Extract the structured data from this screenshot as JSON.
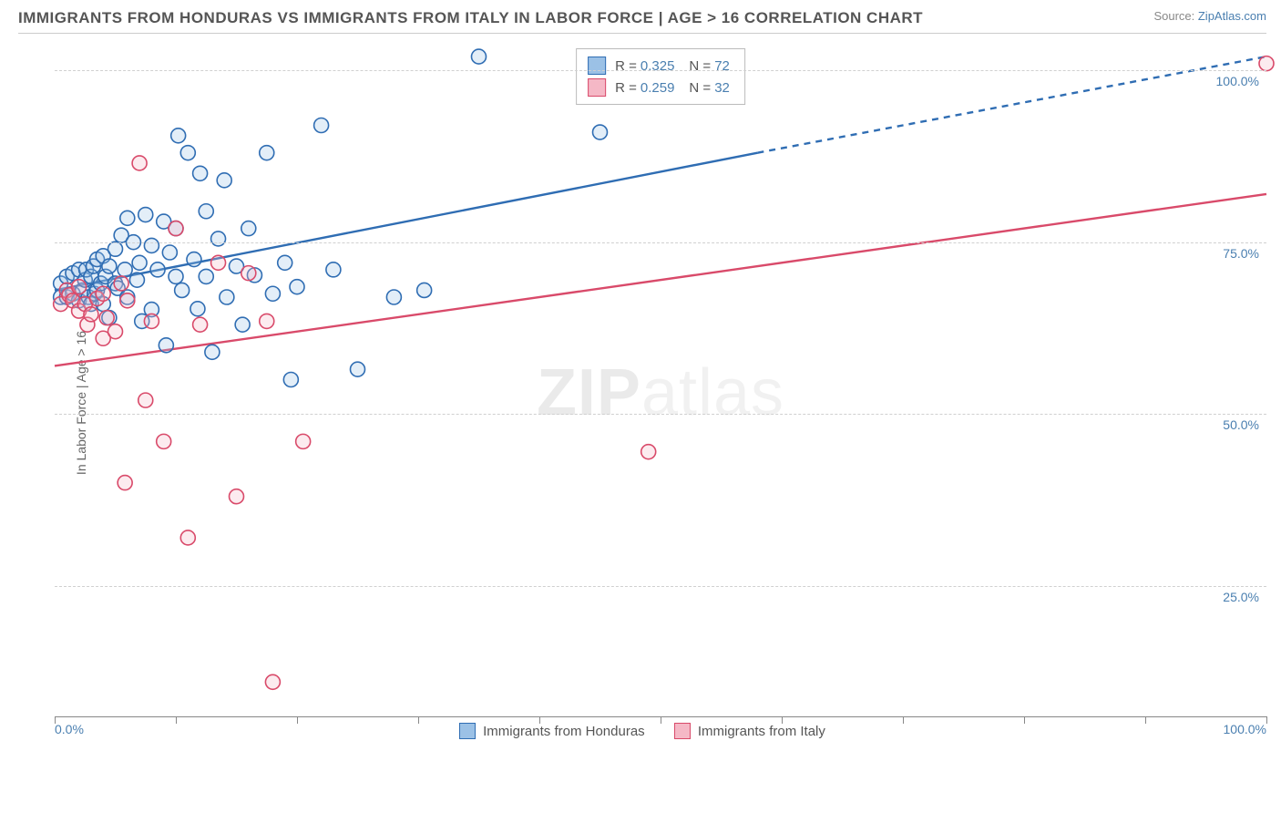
{
  "title": "IMMIGRANTS FROM HONDURAS VS IMMIGRANTS FROM ITALY IN LABOR FORCE | AGE > 16 CORRELATION CHART",
  "source": {
    "label": "Source: ",
    "value": "ZipAtlas.com"
  },
  "y_axis_label": "In Labor Force | Age > 16",
  "watermark": {
    "bold": "ZIP",
    "thin": "atlas"
  },
  "chart": {
    "type": "scatter",
    "background_color": "#ffffff",
    "grid_color": "#d0d0d0",
    "axis_color": "#888888",
    "tick_label_color": "#4a7fb0",
    "text_color": "#555555",
    "xlim": [
      0,
      100
    ],
    "ylim": [
      6,
      104
    ],
    "x_tick_positions": [
      0,
      10,
      20,
      30,
      40,
      50,
      60,
      70,
      80,
      90,
      100
    ],
    "x_tick_labels_visible": {
      "left": "0.0%",
      "right": "100.0%"
    },
    "y_gridlines": [
      25,
      50,
      75,
      100
    ],
    "y_tick_labels": [
      "25.0%",
      "50.0%",
      "75.0%",
      "100.0%"
    ],
    "marker_radius": 8,
    "marker_fill_opacity": 0.28,
    "marker_stroke_width": 1.6,
    "line_width": 2.4,
    "series": [
      {
        "name": "Immigrants from Honduras",
        "color_stroke": "#2f6db3",
        "color_fill": "#9bc1e6",
        "stats": {
          "R": "0.325",
          "N": "72"
        },
        "trend": {
          "x1": 0,
          "y1": 68,
          "x2_solid": 58,
          "y2_solid": 88,
          "x2_dash": 100,
          "y2_dash": 102
        },
        "points": [
          [
            0.5,
            67
          ],
          [
            0.5,
            69
          ],
          [
            1,
            70
          ],
          [
            1,
            67
          ],
          [
            1.5,
            67.5
          ],
          [
            1.5,
            70.5
          ],
          [
            2,
            66.5
          ],
          [
            2,
            71
          ],
          [
            2.3,
            68
          ],
          [
            2.5,
            69.5
          ],
          [
            2.6,
            71
          ],
          [
            2.8,
            67
          ],
          [
            3,
            66
          ],
          [
            3,
            70
          ],
          [
            3.2,
            71.5
          ],
          [
            3.3,
            67.5
          ],
          [
            3.5,
            72.5
          ],
          [
            3.5,
            68
          ],
          [
            3.8,
            69
          ],
          [
            4,
            73
          ],
          [
            4,
            66
          ],
          [
            4.2,
            70
          ],
          [
            4.5,
            64
          ],
          [
            4.5,
            71.5
          ],
          [
            5,
            69
          ],
          [
            5,
            74
          ],
          [
            5.2,
            68.3
          ],
          [
            5.5,
            76
          ],
          [
            5.8,
            71
          ],
          [
            6,
            67
          ],
          [
            6,
            78.5
          ],
          [
            6.5,
            75
          ],
          [
            6.8,
            69.5
          ],
          [
            7,
            72
          ],
          [
            7.2,
            63.5
          ],
          [
            7.5,
            79
          ],
          [
            8,
            74.5
          ],
          [
            8,
            65.2
          ],
          [
            8.5,
            71
          ],
          [
            9,
            78
          ],
          [
            9.2,
            60
          ],
          [
            9.5,
            73.5
          ],
          [
            10,
            70
          ],
          [
            10,
            77
          ],
          [
            10.2,
            90.5
          ],
          [
            10.5,
            68
          ],
          [
            11,
            88
          ],
          [
            11.5,
            72.5
          ],
          [
            11.8,
            65.3
          ],
          [
            12,
            85
          ],
          [
            12.5,
            70
          ],
          [
            12.5,
            79.5
          ],
          [
            13,
            59
          ],
          [
            13.5,
            75.5
          ],
          [
            14,
            84
          ],
          [
            14.2,
            67
          ],
          [
            15,
            71.5
          ],
          [
            15.5,
            63
          ],
          [
            16,
            77
          ],
          [
            16.5,
            70.2
          ],
          [
            17.5,
            88
          ],
          [
            18,
            67.5
          ],
          [
            19,
            72
          ],
          [
            19.5,
            55
          ],
          [
            20,
            68.5
          ],
          [
            22,
            92
          ],
          [
            23,
            71
          ],
          [
            25,
            56.5
          ],
          [
            28,
            67
          ],
          [
            30.5,
            68
          ],
          [
            35,
            102
          ],
          [
            45,
            91
          ]
        ]
      },
      {
        "name": "Immigrants from Italy",
        "color_stroke": "#d94a6a",
        "color_fill": "#f5b8c6",
        "stats": {
          "R": "0.259",
          "N": "32"
        },
        "trend": {
          "x1": 0,
          "y1": 57,
          "x2_solid": 100,
          "y2_solid": 82,
          "x2_dash": 100,
          "y2_dash": 82
        },
        "points": [
          [
            0.5,
            66
          ],
          [
            1,
            68
          ],
          [
            1.2,
            67.3
          ],
          [
            1.5,
            66.5
          ],
          [
            2,
            65
          ],
          [
            2,
            68.5
          ],
          [
            2.5,
            66
          ],
          [
            2.7,
            63
          ],
          [
            3,
            64.5
          ],
          [
            3.5,
            66.8
          ],
          [
            4,
            61
          ],
          [
            4,
            67.5
          ],
          [
            4.3,
            64
          ],
          [
            5,
            62
          ],
          [
            5.5,
            69
          ],
          [
            5.8,
            40
          ],
          [
            6,
            66.5
          ],
          [
            7,
            86.5
          ],
          [
            7.5,
            52
          ],
          [
            8,
            63.5
          ],
          [
            9,
            46
          ],
          [
            10,
            77
          ],
          [
            11,
            32
          ],
          [
            12,
            63
          ],
          [
            13.5,
            72
          ],
          [
            15,
            38
          ],
          [
            16,
            70.5
          ],
          [
            17.5,
            63.5
          ],
          [
            18,
            11
          ],
          [
            20.5,
            46
          ],
          [
            49,
            44.5
          ],
          [
            100,
            101
          ]
        ]
      }
    ],
    "bottom_legend": [
      {
        "square_fill": "#9bc1e6",
        "square_stroke": "#2f6db3",
        "label": "Immigrants from Honduras"
      },
      {
        "square_fill": "#f5b8c6",
        "square_stroke": "#d94a6a",
        "label": "Immigrants from Italy"
      }
    ]
  }
}
